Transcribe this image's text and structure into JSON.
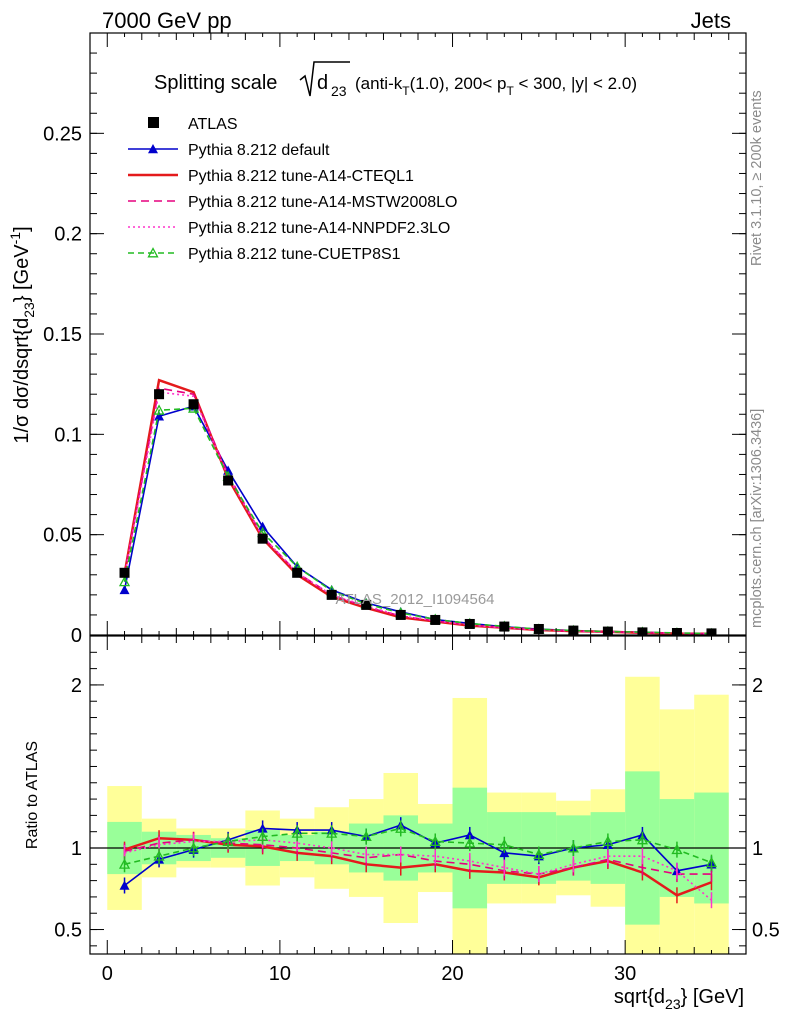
{
  "header": {
    "left": "7000 GeV pp",
    "right": "Jets"
  },
  "side_labels": {
    "rivet": "Rivet 3.1.10, ≥ 200k events",
    "mcplots": "mcplots.cern.ch [arXiv:1306.3436]"
  },
  "watermark": "ATLAS_2012_I1094564",
  "title": {
    "main": "Splitting scale",
    "sqrt_sub": "d",
    "sqrt_subscript": "23",
    "detail": "(anti-k",
    "detail_T": "T",
    "detail_rest": "(1.0), 200< p",
    "detail_pT": "T",
    "detail_end": " < 300, |y| < 2.0)"
  },
  "colors": {
    "atlas": "#000000",
    "default": "#0000cc",
    "cteql1": "#e41a1c",
    "mstw": "#e6007e",
    "nnpdf": "#ff33cc",
    "cuetp": "#22bb22",
    "band_inner": "#99ff99",
    "band_outer": "#ffff99"
  },
  "chart_data": {
    "type": "line",
    "xlabel": "sqrt{d",
    "xlabel_sub": "23",
    "xlabel_end": "} [GeV]",
    "ylabel": "1/σ dσ/dsqrt{d",
    "ylabel_sub": "23",
    "ylabel_end": "} [GeV",
    "ylabel_sup": "-1",
    "ylabel_close": "]",
    "ratio_ylabel": "Ratio to ATLAS",
    "xlim": [
      -1,
      37
    ],
    "ylim_main": [
      0,
      0.3
    ],
    "ylim_ratio": [
      0.35,
      2.3
    ],
    "x_ticks": [
      0,
      10,
      20,
      30
    ],
    "x_tick_labels": [
      "0",
      "10",
      "20",
      "30"
    ],
    "y_ticks_main": [
      0,
      0.05,
      0.1,
      0.15,
      0.2,
      0.25
    ],
    "y_tick_labels_main": [
      "0",
      "0.05",
      "0.1",
      "0.15",
      "0.2",
      "0.25"
    ],
    "y_ticks_ratio": [
      0.5,
      1,
      2
    ],
    "y_tick_labels_ratio": [
      "0.5",
      "1",
      "2"
    ],
    "x": [
      1,
      3,
      5,
      7,
      9,
      11,
      13,
      15,
      17,
      19,
      21,
      23,
      25,
      27,
      29,
      31,
      33,
      35
    ],
    "bin_edges": [
      0,
      2,
      4,
      6,
      8,
      10,
      12,
      14,
      16,
      18,
      20,
      22,
      24,
      26,
      28,
      30,
      32,
      34,
      36
    ],
    "atlas": [
      0.031,
      0.12,
      0.115,
      0.077,
      0.048,
      0.031,
      0.02,
      0.015,
      0.01,
      0.0075,
      0.0055,
      0.0042,
      0.003,
      0.0022,
      0.0017,
      0.0013,
      0.001,
      0.0008
    ],
    "band_inner": [
      [
        0.84,
        1.16
      ],
      [
        0.9,
        1.1
      ],
      [
        0.92,
        1.08
      ],
      [
        0.94,
        1.06
      ],
      [
        0.89,
        1.11
      ],
      [
        0.92,
        1.08
      ],
      [
        0.9,
        1.1
      ],
      [
        0.85,
        1.15
      ],
      [
        0.8,
        1.2
      ],
      [
        0.85,
        1.15
      ],
      [
        0.63,
        1.37
      ],
      [
        0.78,
        1.22
      ],
      [
        0.78,
        1.22
      ],
      [
        0.8,
        1.2
      ],
      [
        0.78,
        1.22
      ],
      [
        0.53,
        1.47
      ],
      [
        0.7,
        1.3
      ],
      [
        0.66,
        1.34
      ]
    ],
    "band_outer": [
      [
        0.62,
        1.38
      ],
      [
        0.82,
        1.18
      ],
      [
        0.88,
        1.12
      ],
      [
        0.88,
        1.12
      ],
      [
        0.77,
        1.23
      ],
      [
        0.82,
        1.18
      ],
      [
        0.75,
        1.25
      ],
      [
        0.7,
        1.3
      ],
      [
        0.54,
        1.46
      ],
      [
        0.73,
        1.27
      ],
      [
        0.35,
        1.92
      ],
      [
        0.66,
        1.34
      ],
      [
        0.66,
        1.34
      ],
      [
        0.71,
        1.29
      ],
      [
        0.64,
        1.36
      ],
      [
        0.35,
        2.05
      ],
      [
        0.35,
        1.85
      ],
      [
        0.35,
        1.94
      ]
    ],
    "legend": [
      "ATLAS",
      "Pythia 8.212 default",
      "Pythia 8.212 tune-A14-CTEQL1",
      "Pythia 8.212 tune-A14-MSTW2008LO",
      "Pythia 8.212 tune-A14-NNPDF2.3LO",
      "Pythia 8.212 tune-CUETP8S1"
    ],
    "series": [
      {
        "name": "Pythia 8.212 default",
        "key": "default",
        "dash": "",
        "marker": "triangle-filled",
        "values": [
          0.0225,
          0.109,
          0.114,
          0.082,
          0.054,
          0.034,
          0.0225,
          0.016,
          0.0115,
          0.0077,
          0.0058,
          0.0041,
          0.0029,
          0.0022,
          0.0017,
          0.0014,
          0.00085,
          0.0007
        ],
        "ratio": [
          0.77,
          0.93,
          0.99,
          1.05,
          1.12,
          1.11,
          1.11,
          1.07,
          1.14,
          1.03,
          1.08,
          0.97,
          0.95,
          1.0,
          1.02,
          1.08,
          0.86,
          0.9
        ]
      },
      {
        "name": "Pythia 8.212 tune-A14-CTEQL1",
        "key": "cteql1",
        "dash": "",
        "marker": "none",
        "values": [
          0.0305,
          0.127,
          0.121,
          0.078,
          0.048,
          0.03,
          0.019,
          0.0135,
          0.0088,
          0.0067,
          0.0047,
          0.0036,
          0.0025,
          0.0019,
          0.0016,
          0.0011,
          0.0007,
          0.0006
        ],
        "ratio": [
          0.99,
          1.06,
          1.05,
          1.02,
          1.01,
          0.97,
          0.95,
          0.9,
          0.88,
          0.9,
          0.86,
          0.85,
          0.82,
          0.88,
          0.92,
          0.85,
          0.71,
          0.79
        ]
      },
      {
        "name": "Pythia 8.212 tune-A14-MSTW2008LO",
        "key": "mstw",
        "dash": "8,5",
        "marker": "none",
        "values": [
          0.03,
          0.123,
          0.12,
          0.08,
          0.049,
          0.031,
          0.02,
          0.014,
          0.0095,
          0.007,
          0.0049,
          0.0036,
          0.0026,
          0.0019,
          0.0016,
          0.0012,
          0.0008,
          0.0006
        ],
        "ratio": [
          0.98,
          1.03,
          1.05,
          1.03,
          1.02,
          1.0,
          0.97,
          0.94,
          0.96,
          0.92,
          0.9,
          0.86,
          0.84,
          0.88,
          0.93,
          0.88,
          0.84,
          0.84
        ]
      },
      {
        "name": "Pythia 8.212 tune-A14-NNPDF2.3LO",
        "key": "nnpdf",
        "dash": "2,3",
        "marker": "none",
        "values": [
          0.0295,
          0.121,
          0.119,
          0.079,
          0.049,
          0.031,
          0.02,
          0.0145,
          0.0095,
          0.0072,
          0.005,
          0.0036,
          0.0026,
          0.002,
          0.0016,
          0.0013,
          0.0009,
          0.0006
        ],
        "ratio": [
          0.97,
          1.02,
          1.04,
          1.04,
          1.05,
          1.03,
          1.0,
          0.96,
          0.96,
          0.95,
          0.92,
          0.88,
          0.84,
          0.9,
          0.95,
          0.95,
          0.86,
          0.68
        ]
      },
      {
        "name": "Pythia 8.212 tune-CUETP8S1",
        "key": "cuetp",
        "dash": "6,4",
        "marker": "triangle-open",
        "values": [
          0.0265,
          0.112,
          0.113,
          0.079,
          0.051,
          0.034,
          0.022,
          0.0155,
          0.011,
          0.0078,
          0.0057,
          0.0043,
          0.0029,
          0.0022,
          0.0017,
          0.0014,
          0.001,
          0.0007
        ],
        "ratio": [
          0.9,
          0.95,
          1.0,
          1.04,
          1.07,
          1.09,
          1.09,
          1.07,
          1.12,
          1.04,
          1.03,
          1.02,
          0.96,
          1.0,
          1.04,
          1.05,
          0.99,
          0.91
        ]
      }
    ]
  }
}
